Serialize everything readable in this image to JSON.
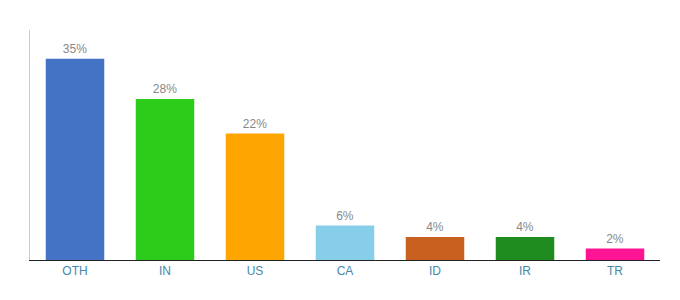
{
  "chart_data": {
    "type": "bar",
    "categories": [
      "OTH",
      "IN",
      "US",
      "CA",
      "ID",
      "IR",
      "TR"
    ],
    "values": [
      35,
      28,
      22,
      6,
      4,
      4,
      2
    ],
    "value_labels": [
      "35%",
      "28%",
      "22%",
      "6%",
      "4%",
      "4%",
      "2%"
    ],
    "data_labels": true,
    "colors": [
      "#4472c4",
      "#2ecc1a",
      "#ffa500",
      "#87ceeb",
      "#c86020",
      "#1e8c1e",
      "#ff1493"
    ],
    "ylim": [
      0,
      40
    ],
    "grid": false,
    "tick_labels": "x"
  }
}
